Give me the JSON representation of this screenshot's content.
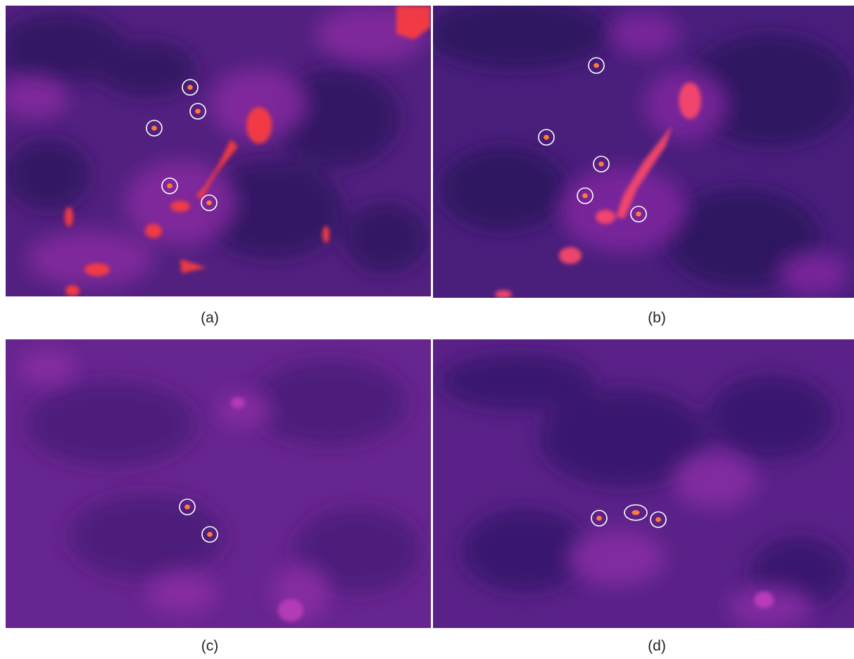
{
  "panels": [
    {
      "id": "a",
      "caption": "(a)",
      "palette": {
        "base": "#52217f",
        "dark": "#2f1460",
        "mid": "#8a2aa3",
        "bright": "#c43ab7",
        "hot": "#ff3d3d",
        "hotspot": "#ff7a3a"
      }
    },
    {
      "id": "b",
      "caption": "(b)",
      "palette": {
        "base": "#4a1f7c",
        "dark": "#2a125d",
        "mid": "#8428a2",
        "bright": "#c43ab7",
        "hot": "#ff4a6a",
        "hotspot": "#ff7a3a"
      }
    },
    {
      "id": "c",
      "caption": "(c)",
      "palette": {
        "base": "#67258f",
        "dark": "#4a1d78",
        "mid": "#8d2ea6",
        "bright": "#b33ab6",
        "hot": "#ff4a6a",
        "hotspot": "#ff7a3a"
      }
    },
    {
      "id": "d",
      "caption": "(d)",
      "palette": {
        "base": "#5a2288",
        "dark": "#34166a",
        "mid": "#8a2ea6",
        "bright": "#b83aba",
        "hot": "#ff4a6a",
        "hotspot": "#ff7a3a"
      }
    }
  ],
  "marker_color": "#ffffff",
  "hotspot_counts": {
    "a": 5,
    "b": 5,
    "c": 2,
    "d": 3
  }
}
